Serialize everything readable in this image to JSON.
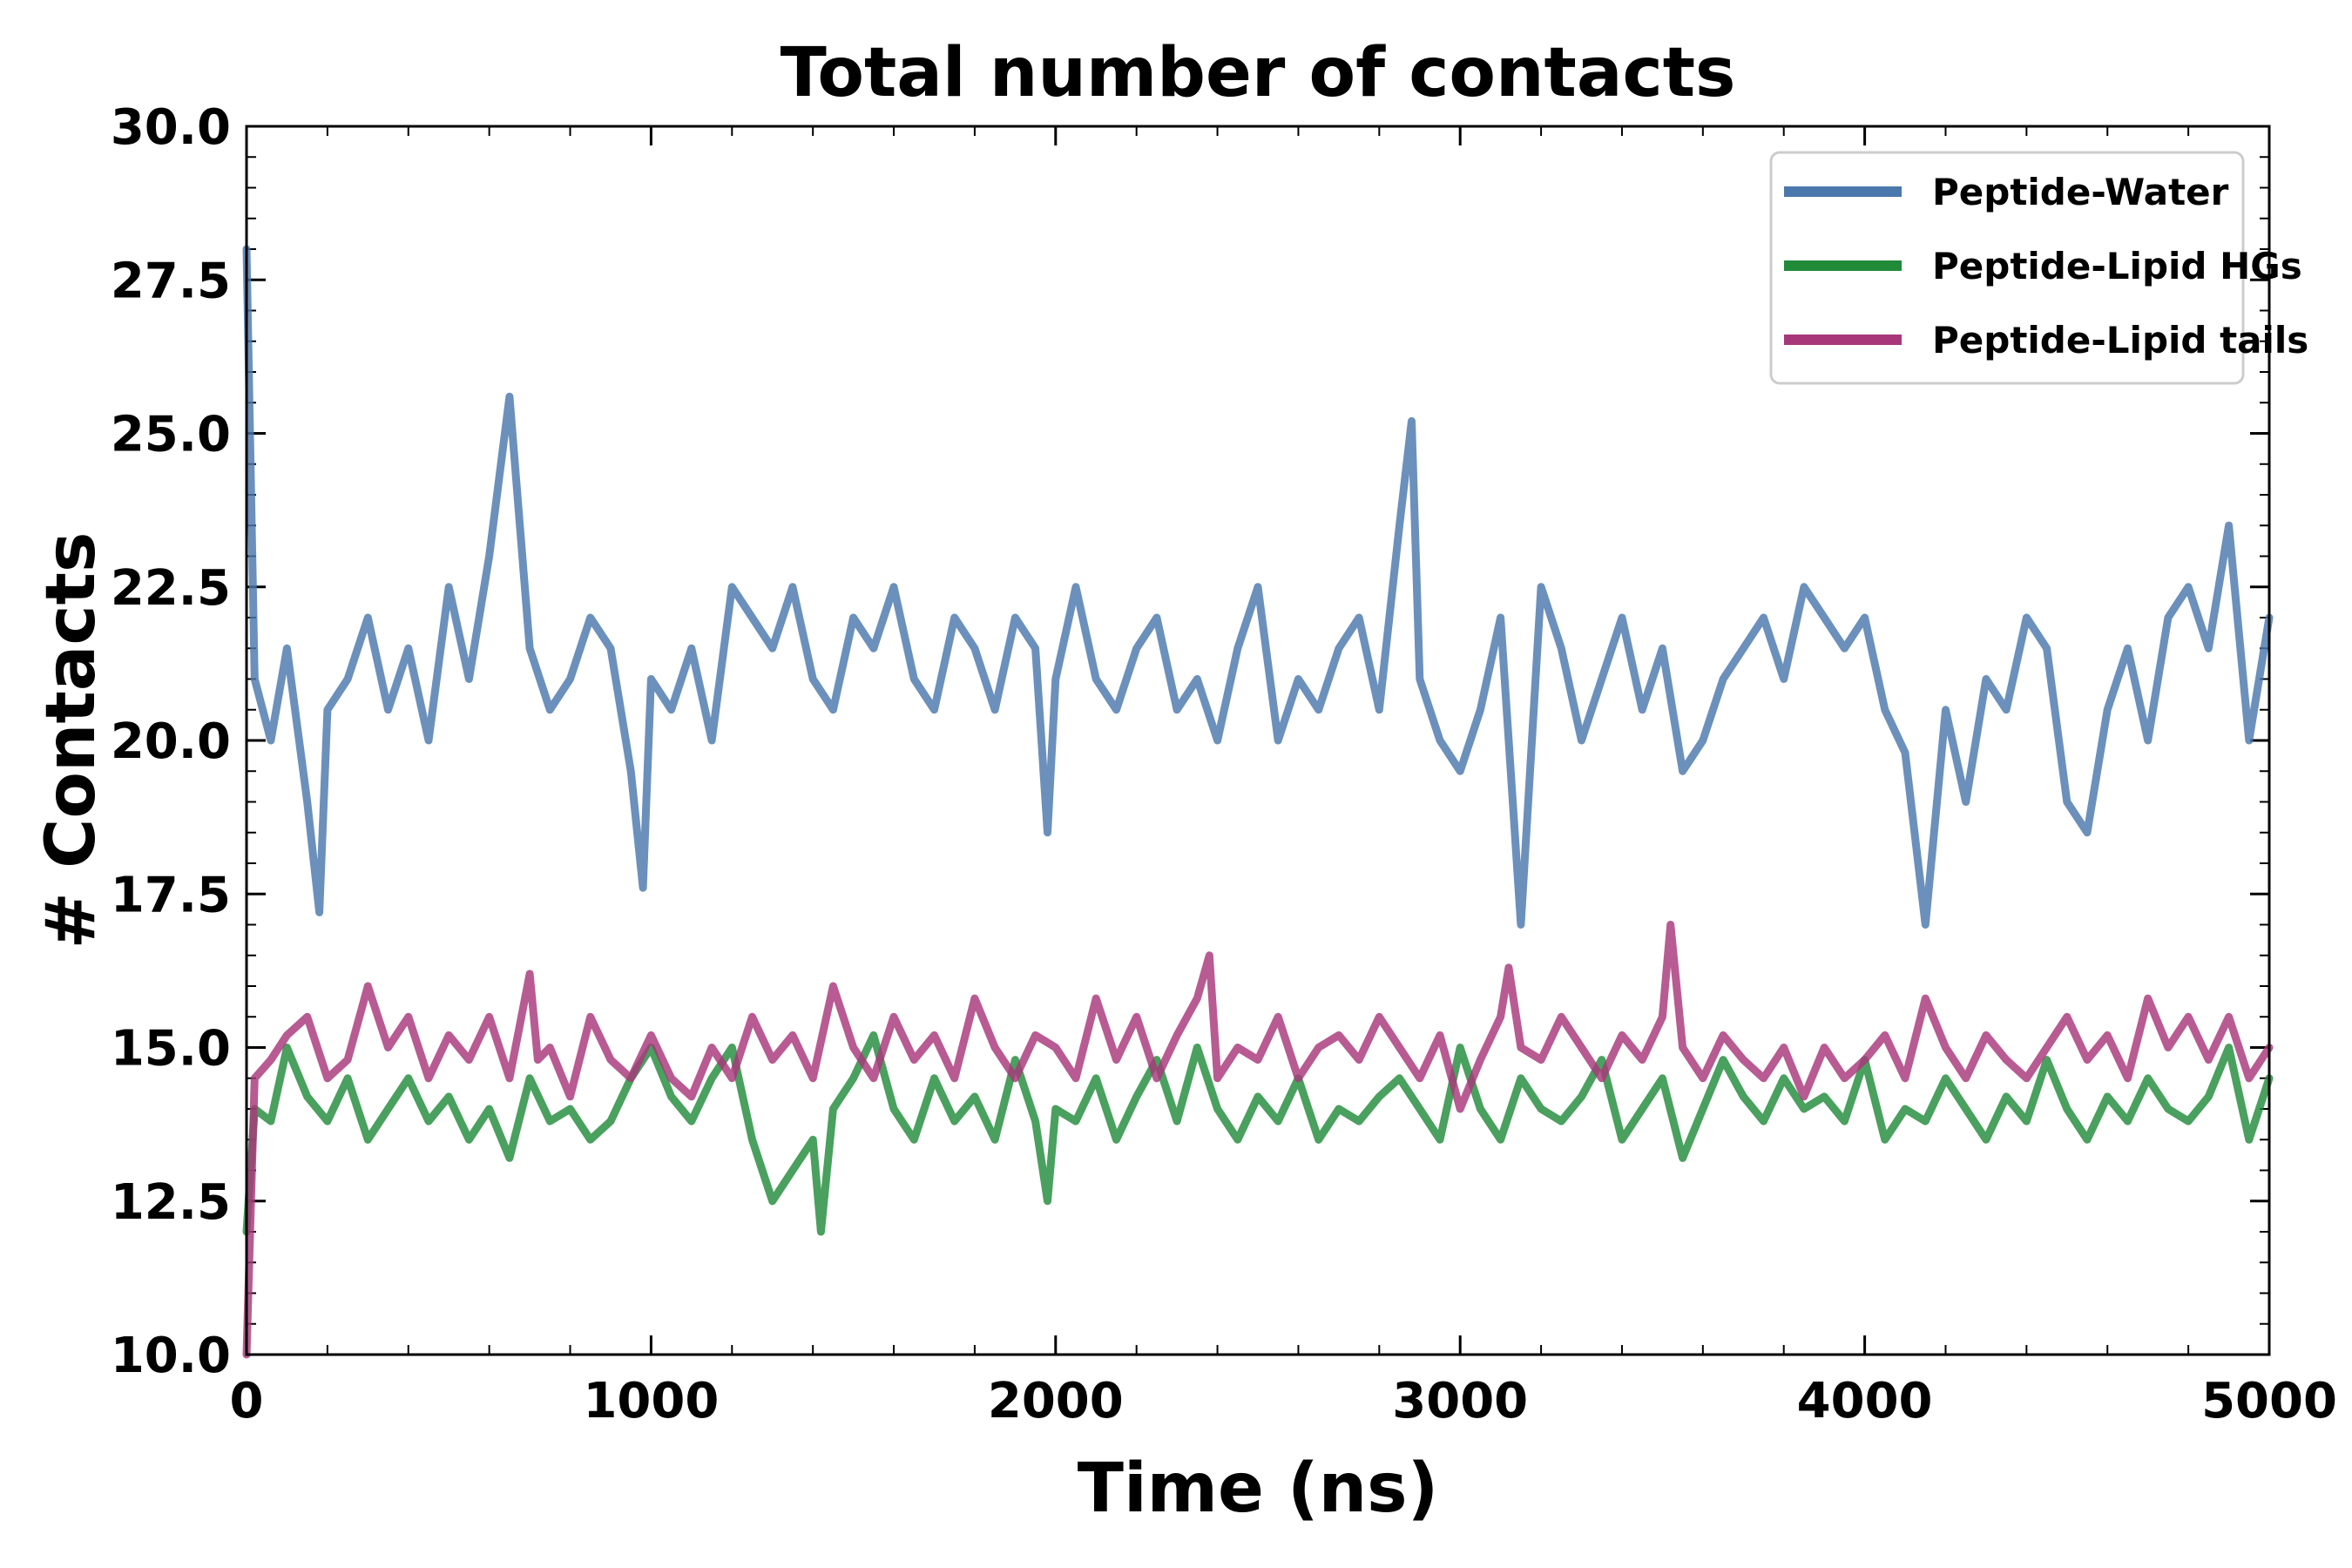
{
  "chart_data": {
    "type": "line",
    "title": "Total number of contacts",
    "xlabel": "Time (ns)",
    "ylabel": "# Contacts",
    "xlim": [
      0,
      5000
    ],
    "ylim": [
      10.0,
      30.0
    ],
    "x_ticks": [
      0,
      1000,
      2000,
      3000,
      4000,
      5000
    ],
    "x_tick_labels": [
      "0",
      "1000",
      "2000",
      "3000",
      "4000",
      "5000"
    ],
    "y_ticks": [
      10.0,
      12.5,
      15.0,
      17.5,
      20.0,
      22.5,
      25.0,
      27.5,
      30.0
    ],
    "y_tick_labels": [
      "10.0",
      "12.5",
      "15.0",
      "17.5",
      "20.0",
      "22.5",
      "25.0",
      "27.5",
      "30.0"
    ],
    "grid": false,
    "legend_position": "top-right",
    "series": [
      {
        "name": "Peptide-Water",
        "color": "#4a78ad",
        "x": [
          0,
          20,
          60,
          100,
          150,
          180,
          200,
          250,
          300,
          350,
          400,
          450,
          500,
          550,
          600,
          650,
          700,
          750,
          800,
          850,
          900,
          950,
          980,
          1000,
          1050,
          1100,
          1150,
          1200,
          1250,
          1300,
          1350,
          1400,
          1450,
          1500,
          1550,
          1600,
          1650,
          1700,
          1750,
          1800,
          1850,
          1900,
          1950,
          1980,
          2000,
          2050,
          2100,
          2150,
          2200,
          2250,
          2300,
          2350,
          2400,
          2450,
          2500,
          2550,
          2600,
          2650,
          2700,
          2750,
          2800,
          2850,
          2880,
          2900,
          2950,
          3000,
          3050,
          3100,
          3150,
          3200,
          3250,
          3300,
          3350,
          3400,
          3450,
          3500,
          3550,
          3600,
          3650,
          3700,
          3750,
          3800,
          3850,
          3900,
          3950,
          4000,
          4050,
          4100,
          4150,
          4200,
          4250,
          4300,
          4350,
          4400,
          4450,
          4500,
          4550,
          4600,
          4650,
          4700,
          4750,
          4800,
          4850,
          4900,
          4950,
          5000
        ],
        "values": [
          28.0,
          21.0,
          20.0,
          21.5,
          19.0,
          17.2,
          20.5,
          21.0,
          22.0,
          20.5,
          21.5,
          20.0,
          22.5,
          21.0,
          23.0,
          25.6,
          21.5,
          20.5,
          21.0,
          22.0,
          21.5,
          19.5,
          17.6,
          21.0,
          20.5,
          21.5,
          20.0,
          22.5,
          22.0,
          21.5,
          22.5,
          21.0,
          20.5,
          22.0,
          21.5,
          22.5,
          21.0,
          20.5,
          22.0,
          21.5,
          20.5,
          22.0,
          21.5,
          18.5,
          21.0,
          22.5,
          21.0,
          20.5,
          21.5,
          22.0,
          20.5,
          21.0,
          20.0,
          21.5,
          22.5,
          20.0,
          21.0,
          20.5,
          21.5,
          22.0,
          20.5,
          23.5,
          25.2,
          21.0,
          20.0,
          19.5,
          20.5,
          22.0,
          17.0,
          22.5,
          21.5,
          20.0,
          21.0,
          22.0,
          20.5,
          21.5,
          19.5,
          20.0,
          21.0,
          21.5,
          22.0,
          21.0,
          22.5,
          22.0,
          21.5,
          22.0,
          20.5,
          19.8,
          17.0,
          20.5,
          19.0,
          21.0,
          20.5,
          22.0,
          21.5,
          19.0,
          18.5,
          20.5,
          21.5,
          20.0,
          22.0,
          22.5,
          21.5,
          23.5,
          20.0,
          22.0
        ]
      },
      {
        "name": "Peptide-Lipid HGs",
        "color": "#228b3a",
        "x": [
          0,
          20,
          60,
          100,
          150,
          200,
          250,
          300,
          350,
          400,
          450,
          500,
          550,
          600,
          650,
          700,
          750,
          800,
          850,
          900,
          950,
          1000,
          1050,
          1100,
          1150,
          1200,
          1250,
          1300,
          1350,
          1400,
          1420,
          1450,
          1500,
          1550,
          1600,
          1650,
          1700,
          1750,
          1800,
          1850,
          1900,
          1950,
          1980,
          2000,
          2050,
          2100,
          2150,
          2200,
          2250,
          2300,
          2350,
          2400,
          2450,
          2500,
          2550,
          2600,
          2650,
          2700,
          2750,
          2800,
          2850,
          2900,
          2950,
          3000,
          3050,
          3100,
          3150,
          3200,
          3250,
          3300,
          3350,
          3400,
          3450,
          3500,
          3550,
          3600,
          3650,
          3700,
          3750,
          3800,
          3850,
          3900,
          3950,
          4000,
          4050,
          4100,
          4150,
          4200,
          4250,
          4300,
          4350,
          4400,
          4450,
          4500,
          4550,
          4600,
          4650,
          4700,
          4750,
          4800,
          4850,
          4900,
          4950,
          5000
        ],
        "values": [
          12.0,
          14.0,
          13.8,
          15.0,
          14.2,
          13.8,
          14.5,
          13.5,
          14.0,
          14.5,
          13.8,
          14.2,
          13.5,
          14.0,
          13.2,
          14.5,
          13.8,
          14.0,
          13.5,
          13.8,
          14.5,
          15.0,
          14.2,
          13.8,
          14.5,
          15.0,
          13.5,
          12.5,
          13.0,
          13.5,
          12.0,
          14.0,
          14.5,
          15.2,
          14.0,
          13.5,
          14.5,
          13.8,
          14.2,
          13.5,
          14.8,
          13.8,
          12.5,
          14.0,
          13.8,
          14.5,
          13.5,
          14.2,
          14.8,
          13.8,
          15.0,
          14.0,
          13.5,
          14.2,
          13.8,
          14.5,
          13.5,
          14.0,
          13.8,
          14.2,
          14.5,
          14.0,
          13.5,
          15.0,
          14.0,
          13.5,
          14.5,
          14.0,
          13.8,
          14.2,
          14.8,
          13.5,
          14.0,
          14.5,
          13.2,
          14.0,
          14.8,
          14.2,
          13.8,
          14.5,
          14.0,
          14.2,
          13.8,
          14.8,
          13.5,
          14.0,
          13.8,
          14.5,
          14.0,
          13.5,
          14.2,
          13.8,
          14.8,
          14.0,
          13.5,
          14.2,
          13.8,
          14.5,
          14.0,
          13.8,
          14.2,
          15.0,
          13.5,
          14.5
        ]
      },
      {
        "name": "Peptide-Lipid tails",
        "color": "#a8377a",
        "x": [
          0,
          20,
          60,
          100,
          150,
          200,
          250,
          300,
          350,
          400,
          450,
          500,
          550,
          600,
          650,
          700,
          720,
          750,
          800,
          850,
          900,
          950,
          1000,
          1050,
          1100,
          1150,
          1200,
          1250,
          1300,
          1350,
          1400,
          1450,
          1500,
          1550,
          1600,
          1650,
          1700,
          1750,
          1800,
          1850,
          1900,
          1950,
          2000,
          2050,
          2100,
          2150,
          2200,
          2250,
          2300,
          2350,
          2380,
          2400,
          2450,
          2500,
          2550,
          2600,
          2650,
          2700,
          2750,
          2800,
          2850,
          2900,
          2950,
          3000,
          3050,
          3100,
          3120,
          3150,
          3200,
          3250,
          3300,
          3350,
          3400,
          3450,
          3500,
          3520,
          3550,
          3600,
          3650,
          3700,
          3750,
          3800,
          3850,
          3900,
          3950,
          4000,
          4050,
          4100,
          4150,
          4200,
          4250,
          4300,
          4350,
          4400,
          4450,
          4500,
          4550,
          4600,
          4650,
          4700,
          4750,
          4800,
          4850,
          4900,
          4950,
          5000
        ],
        "values": [
          10.0,
          14.5,
          14.8,
          15.2,
          15.5,
          14.5,
          14.8,
          16.0,
          15.0,
          15.5,
          14.5,
          15.2,
          14.8,
          15.5,
          14.5,
          16.2,
          14.8,
          15.0,
          14.2,
          15.5,
          14.8,
          14.5,
          15.2,
          14.5,
          14.2,
          15.0,
          14.5,
          15.5,
          14.8,
          15.2,
          14.5,
          16.0,
          15.0,
          14.5,
          15.5,
          14.8,
          15.2,
          14.5,
          15.8,
          15.0,
          14.5,
          15.2,
          15.0,
          14.5,
          15.8,
          14.8,
          15.5,
          14.5,
          15.2,
          15.8,
          16.5,
          14.5,
          15.0,
          14.8,
          15.5,
          14.5,
          15.0,
          15.2,
          14.8,
          15.5,
          15.0,
          14.5,
          15.2,
          14.0,
          14.8,
          15.5,
          16.3,
          15.0,
          14.8,
          15.5,
          15.0,
          14.5,
          15.2,
          14.8,
          15.5,
          17.0,
          15.0,
          14.5,
          15.2,
          14.8,
          14.5,
          15.0,
          14.2,
          15.0,
          14.5,
          14.8,
          15.2,
          14.5,
          15.8,
          15.0,
          14.5,
          15.2,
          14.8,
          14.5,
          15.0,
          15.5,
          14.8,
          15.2,
          14.5,
          15.8,
          15.0,
          15.5,
          14.8,
          15.5,
          14.5,
          15.0
        ]
      }
    ]
  }
}
